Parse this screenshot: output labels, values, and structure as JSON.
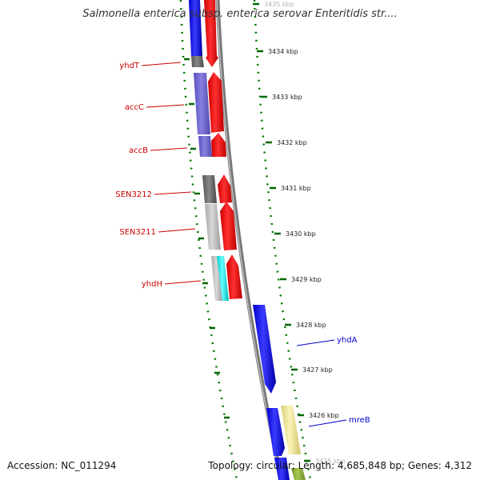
{
  "title": "Salmonella enterica subsp. enterica serovar Enteritidis str....",
  "footer": {
    "accession": "Accession: NC_011294",
    "summary": "Topology: circular; Length: 4,685,848 bp; Genes: 4,312"
  },
  "colors": {
    "strand_forward": "#ff0000",
    "strand_reverse": "#0000ff",
    "gene_label_left": "#cc0000",
    "gene_label_right": "#0000cc",
    "scale_ticks": "#006600",
    "backbone": "#888888"
  },
  "scale": {
    "unit": "kbp",
    "ticks": [
      {
        "value": 3435,
        "label": "3435 kbp"
      },
      {
        "value": 3434,
        "label": "3434 kbp"
      },
      {
        "value": 3433,
        "label": "3433 kbp"
      },
      {
        "value": 3432,
        "label": "3432 kbp"
      },
      {
        "value": 3431,
        "label": "3431 kbp"
      },
      {
        "value": 3430,
        "label": "3430 kbp"
      },
      {
        "value": 3429,
        "label": "3429 kbp"
      },
      {
        "value": 3428,
        "label": "3428 kbp"
      },
      {
        "value": 3427,
        "label": "3427 kbp"
      },
      {
        "value": 3426,
        "label": "3426 kbp"
      },
      {
        "value": 3425,
        "label": "3425 kbp"
      }
    ]
  },
  "gene_labels": {
    "left": [
      "yhdT",
      "accC",
      "accB",
      "SEN3212",
      "SEN3211",
      "yhdH"
    ],
    "right": [
      "yhdA",
      "mreB"
    ]
  }
}
